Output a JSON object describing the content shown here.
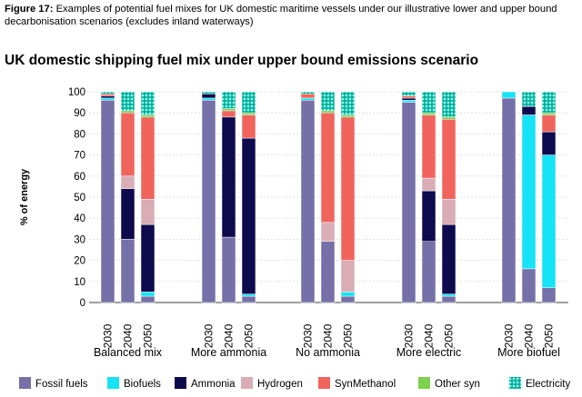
{
  "figure": {
    "label": "Figure 17:",
    "caption": "Examples of potential fuel mixes for UK domestic maritime vessels under our illustrative lower and upper bound decarbonisation scenarios (excludes inland waterways)"
  },
  "chart_data": {
    "type": "bar",
    "stacked": true,
    "title": "UK domestic shipping fuel mix under upper bound emissions scenario",
    "ylabel": "% of energy",
    "xlabel": "",
    "ylim": [
      0,
      100
    ],
    "yticks": [
      0,
      10,
      20,
      30,
      40,
      50,
      60,
      70,
      80,
      90,
      100
    ],
    "grid": true,
    "legend_position": "bottom",
    "colors": {
      "Fossil fuels": "#7570a8",
      "Biofuels": "#16e3f5",
      "Ammonia": "#0d0b4d",
      "Hydrogen": "#d9acb6",
      "SynMethanol": "#f0645c",
      "Other syn": "#7ed04f",
      "Electricity": "#16c4b0"
    },
    "series_order": [
      "Fossil fuels",
      "Biofuels",
      "Ammonia",
      "Hydrogen",
      "SynMethanol",
      "Other syn",
      "Electricity"
    ],
    "groups": [
      {
        "name": "Balanced mix",
        "bars": [
          {
            "year": "2030",
            "values": [
              96,
              1,
              1,
              0,
              1,
              0,
              1
            ]
          },
          {
            "year": "2040",
            "values": [
              30,
              0,
              24,
              6,
              30,
              1,
              9
            ]
          },
          {
            "year": "2050",
            "values": [
              3,
              2,
              32,
              12,
              39,
              1,
              11
            ]
          }
        ]
      },
      {
        "name": "More ammonia",
        "bars": [
          {
            "year": "2030",
            "values": [
              96,
              1,
              2,
              0,
              0,
              0,
              1
            ]
          },
          {
            "year": "2040",
            "values": [
              31,
              0,
              57,
              0,
              3,
              1,
              8
            ]
          },
          {
            "year": "2050",
            "values": [
              3,
              1,
              74,
              0,
              11,
              1,
              10
            ]
          }
        ]
      },
      {
        "name": "No ammonia",
        "bars": [
          {
            "year": "2030",
            "values": [
              96,
              1,
              0,
              0,
              2,
              0,
              1
            ]
          },
          {
            "year": "2040",
            "values": [
              29,
              0,
              0,
              9,
              52,
              1,
              9
            ]
          },
          {
            "year": "2050",
            "values": [
              3,
              2,
              0,
              15,
              68,
              1,
              11
            ]
          }
        ]
      },
      {
        "name": "More electric",
        "bars": [
          {
            "year": "2030",
            "values": [
              95,
              1,
              1,
              0,
              1,
              0,
              2
            ]
          },
          {
            "year": "2040",
            "values": [
              29,
              0,
              24,
              6,
              30,
              1,
              10
            ]
          },
          {
            "year": "2050",
            "values": [
              3,
              1,
              33,
              12,
              38,
              1,
              12
            ]
          }
        ]
      },
      {
        "name": "More biofuel",
        "bars": [
          {
            "year": "2030",
            "values": [
              97,
              3,
              0,
              0,
              0,
              0,
              0
            ]
          },
          {
            "year": "2040",
            "values": [
              16,
              73,
              4,
              0,
              0,
              0,
              7
            ]
          },
          {
            "year": "2050",
            "values": [
              7,
              63,
              11,
              0,
              8,
              1,
              10
            ]
          }
        ]
      }
    ]
  }
}
